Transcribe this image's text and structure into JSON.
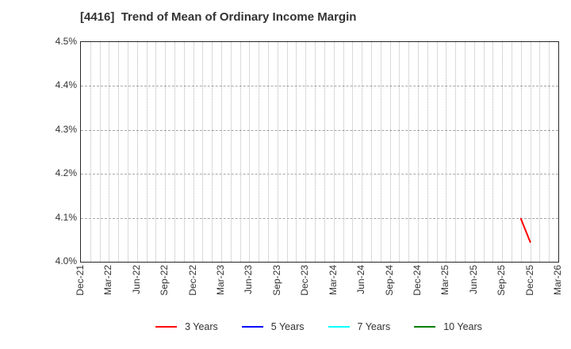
{
  "chart_data": {
    "type": "line",
    "title": "[4416]  Trend of Mean of Ordinary Income Margin",
    "xlabel": "",
    "ylabel": "",
    "ylim": [
      4.0,
      4.5
    ],
    "ytick_labels": [
      "4.0%",
      "4.1%",
      "4.2%",
      "4.3%",
      "4.4%",
      "4.5%"
    ],
    "ytick_values": [
      4.0,
      4.1,
      4.2,
      4.3,
      4.4,
      4.5
    ],
    "x_axis": {
      "start_month": "Dec-21",
      "end_month": "Mar-26",
      "months_total": 51,
      "tick_labels": [
        "Dec-21",
        "Mar-22",
        "Jun-22",
        "Sep-22",
        "Dec-22",
        "Mar-23",
        "Jun-23",
        "Sep-23",
        "Dec-23",
        "Mar-24",
        "Jun-24",
        "Sep-24",
        "Dec-24",
        "Mar-25",
        "Jun-25",
        "Sep-25",
        "Dec-25",
        "Mar-26"
      ],
      "tick_month_indices": [
        0,
        3,
        6,
        9,
        12,
        15,
        18,
        21,
        24,
        27,
        30,
        33,
        36,
        39,
        42,
        45,
        48,
        51
      ]
    },
    "grid": {
      "horizontal_style": "dashed",
      "vertical_style": "dotted-monthly"
    },
    "legend_position": "bottom-center",
    "series": [
      {
        "name": "3 Years",
        "color": "#ff0000",
        "points": [
          {
            "x_label": "Nov-25",
            "month_index": 47,
            "value": 4.098
          },
          {
            "x_label": "Dec-25",
            "month_index": 48,
            "value": 4.045
          }
        ]
      },
      {
        "name": "5 Years",
        "color": "#0000ff",
        "points": []
      },
      {
        "name": "7 Years",
        "color": "#00ffff",
        "points": []
      },
      {
        "name": "10 Years",
        "color": "#008000",
        "points": []
      }
    ]
  },
  "colors": {
    "title_text": "#333333",
    "axis_text": "#333333",
    "plot_border": "#262626",
    "h_gridline": "#a6a6a6",
    "v_gridline": "#b5b5b5",
    "background": "#ffffff"
  }
}
